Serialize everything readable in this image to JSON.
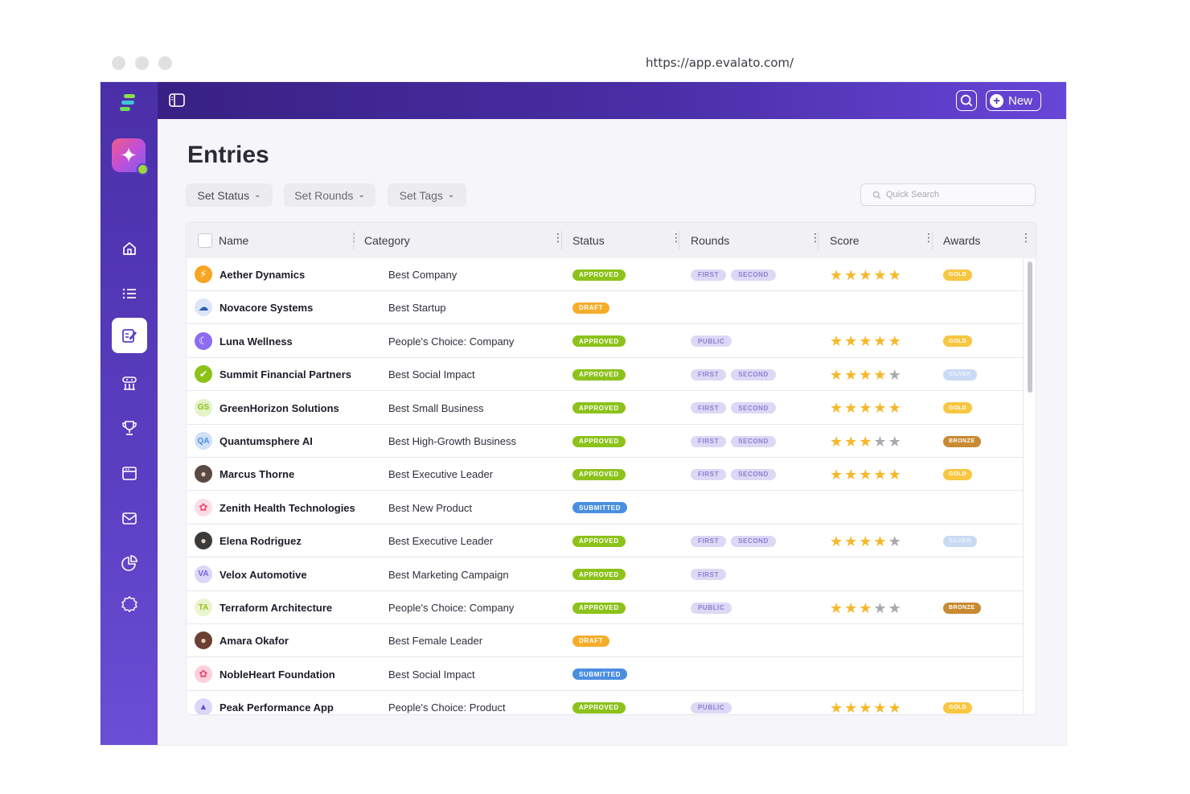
{
  "browser": {
    "url": "https://app.evalato.com/"
  },
  "colors": {
    "brand": "#4a2ea6",
    "approved": "#8cc21a",
    "draft": "#f6ad2a",
    "submitted": "#4a8ee0",
    "gold": "#f8c640",
    "silver": "#c9daf4",
    "bronze": "#c88a32"
  },
  "topbar": {
    "new_label": "New",
    "search_icon": "search-icon",
    "sidebar_toggle_icon": "sidebar-toggle-icon"
  },
  "sidebar": {
    "items": [
      {
        "icon": "home-icon"
      },
      {
        "icon": "list-icon"
      },
      {
        "icon": "entries-icon",
        "active": true
      },
      {
        "icon": "judges-icon"
      },
      {
        "icon": "trophy-icon"
      },
      {
        "icon": "calendar-icon"
      },
      {
        "icon": "mail-icon"
      },
      {
        "icon": "pie-chart-icon"
      },
      {
        "icon": "settings-icon"
      }
    ]
  },
  "page": {
    "title": "Entries"
  },
  "filters": {
    "status": "Set Status",
    "rounds": "Set Rounds",
    "tags": "Set Tags"
  },
  "search": {
    "placeholder": "Quick Search"
  },
  "table": {
    "columns": {
      "name": "Name",
      "category": "Category",
      "status": "Status",
      "rounds": "Rounds",
      "score": "Score",
      "awards": "Awards"
    },
    "rows": [
      {
        "name": "Aether Dynamics",
        "category": "Best Company",
        "status": "APPROVED",
        "rounds": [
          "FIRST",
          "SECOND"
        ],
        "score": 5,
        "award": "GOLD",
        "icon": "bolt-icon",
        "icon_bg": "#f6a623",
        "icon_text": ""
      },
      {
        "name": "Novacore Systems",
        "category": "Best Startup",
        "status": "DRAFT",
        "rounds": [],
        "score": 0,
        "award": "",
        "icon": "cloud-icon",
        "icon_bg": "#dce6f8",
        "icon_text": ""
      },
      {
        "name": "Luna Wellness",
        "category": "People's Choice: Company",
        "status": "APPROVED",
        "rounds": [
          "PUBLIC"
        ],
        "score": 5,
        "award": "GOLD",
        "icon": "moon-icon",
        "icon_bg": "#8d6cf0",
        "icon_text": ""
      },
      {
        "name": "Summit Financial Partners",
        "category": "Best Social Impact",
        "status": "APPROVED",
        "rounds": [
          "FIRST",
          "SECOND"
        ],
        "score": 4,
        "award": "SILVER",
        "icon": "shield-icon",
        "icon_bg": "#8cc21a",
        "icon_text": ""
      },
      {
        "name": "GreenHorizon Solutions",
        "category": "Best Small Business",
        "status": "APPROVED",
        "rounds": [
          "FIRST",
          "SECOND"
        ],
        "score": 5,
        "award": "GOLD",
        "icon": "initials-icon",
        "icon_bg": "#e4f2c8",
        "icon_text": "GS"
      },
      {
        "name": "Quantumsphere AI",
        "category": "Best High-Growth Business",
        "status": "APPROVED",
        "rounds": [
          "FIRST",
          "SECOND"
        ],
        "score": 3,
        "award": "BRONZE",
        "icon": "initials-icon",
        "icon_bg": "#cfe0f8",
        "icon_text": "QA"
      },
      {
        "name": "Marcus Thorne",
        "category": "Best Executive Leader",
        "status": "APPROVED",
        "rounds": [
          "FIRST",
          "SECOND"
        ],
        "score": 5,
        "award": "GOLD",
        "icon": "avatar-photo-icon",
        "icon_bg": "#5a4a44",
        "icon_text": ""
      },
      {
        "name": "Zenith Health Technologies",
        "category": "Best New Product",
        "status": "SUBMITTED",
        "rounds": [],
        "score": 0,
        "award": "",
        "icon": "flower-icon",
        "icon_bg": "#fbdde4",
        "icon_text": ""
      },
      {
        "name": "Elena Rodriguez",
        "category": "Best Executive Leader",
        "status": "APPROVED",
        "rounds": [
          "FIRST",
          "SECOND"
        ],
        "score": 4,
        "award": "SILVER",
        "icon": "avatar-photo-icon",
        "icon_bg": "#3c3a3a",
        "icon_text": ""
      },
      {
        "name": "Velox Automotive",
        "category": "Best Marketing Campaign",
        "status": "APPROVED",
        "rounds": [
          "FIRST"
        ],
        "score": 0,
        "award": "",
        "icon": "initials-icon",
        "icon_bg": "#dcd6f8",
        "icon_text": "VA"
      },
      {
        "name": "Terraform Architecture",
        "category": "People's Choice: Company",
        "status": "APPROVED",
        "rounds": [
          "PUBLIC"
        ],
        "score": 3,
        "award": "BRONZE",
        "icon": "initials-icon",
        "icon_bg": "#eaf4cf",
        "icon_text": "TA"
      },
      {
        "name": "Amara Okafor",
        "category": "Best Female Leader",
        "status": "DRAFT",
        "rounds": [],
        "score": 0,
        "award": "",
        "icon": "avatar-photo-icon",
        "icon_bg": "#6a4030",
        "icon_text": ""
      },
      {
        "name": "NobleHeart Foundation",
        "category": "Best Social Impact",
        "status": "SUBMITTED",
        "rounds": [],
        "score": 0,
        "award": "",
        "icon": "flower-icon",
        "icon_bg": "#fbd0dc",
        "icon_text": ""
      },
      {
        "name": "Peak Performance App",
        "category": "People's Choice: Product",
        "status": "APPROVED",
        "rounds": [
          "PUBLIC"
        ],
        "score": 5,
        "award": "GOLD",
        "icon": "mountain-icon",
        "icon_bg": "#dcd6f8",
        "icon_text": ""
      }
    ]
  }
}
